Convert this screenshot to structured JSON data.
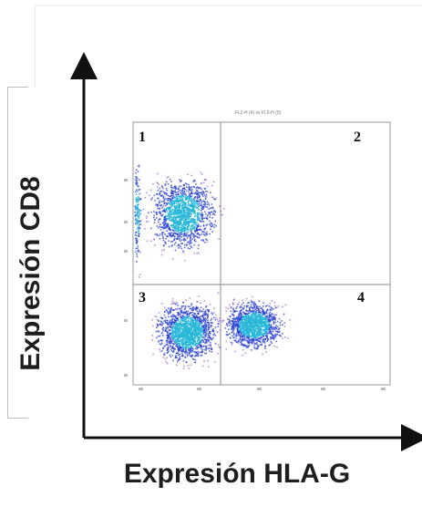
{
  "ylabel": "Expresión CD8",
  "xlabel": "Expresión HLA-G",
  "plot_title": "FL2-H (4) vs FL5-H (5)",
  "quadrants": [
    "1",
    "2",
    "3",
    "4"
  ],
  "colors": {
    "axis": "#111111",
    "dots_sparse": "#7b3fbe",
    "dots_dense": "#2a3fd0",
    "dots_core": "#27b7d8",
    "quadrant_line": "#8a8a8a"
  },
  "clusters": [
    {
      "quadrant": "1",
      "level": "medium"
    },
    {
      "quadrant": "3",
      "level": "high"
    },
    {
      "quadrant": "4",
      "level": "high"
    }
  ]
}
